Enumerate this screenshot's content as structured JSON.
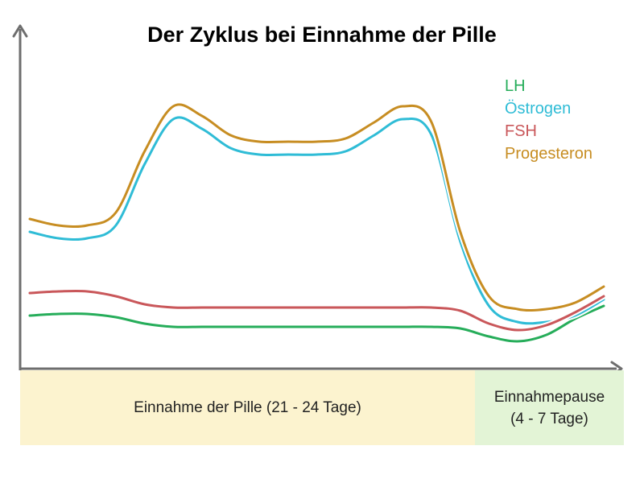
{
  "chart_data": {
    "type": "line",
    "title": "Der Zyklus bei Einnahme der Pille",
    "xlabel": "",
    "ylabel": "",
    "x": [
      0,
      1,
      2,
      3,
      4,
      5,
      6,
      7,
      8,
      9,
      10,
      11,
      12,
      13,
      14,
      15,
      16,
      17,
      18,
      19,
      20
    ],
    "ylim": [
      0,
      100
    ],
    "grid": false,
    "legend_position": "top-right",
    "series": [
      {
        "name": "LH",
        "color": "#26ad5a",
        "values": [
          17,
          17.5,
          17.5,
          16.5,
          14.5,
          13.5,
          13.5,
          13.5,
          13.5,
          13.5,
          13.5,
          13.5,
          13.5,
          13.5,
          13.5,
          13,
          10.5,
          9,
          11,
          16,
          20
        ]
      },
      {
        "name": "Östrogen",
        "color": "#2fbcd6",
        "values": [
          43,
          41,
          41,
          45,
          64,
          78,
          75,
          69,
          67,
          67,
          67,
          68,
          73,
          78,
          73,
          40,
          20,
          15,
          15,
          17,
          22
        ]
      },
      {
        "name": "FSH",
        "color": "#c9575a",
        "values": [
          24,
          24.5,
          24.5,
          23,
          20.5,
          19.5,
          19.5,
          19.5,
          19.5,
          19.5,
          19.5,
          19.5,
          19.5,
          19.5,
          19.5,
          18.5,
          14.5,
          12.5,
          14,
          18,
          23
        ]
      },
      {
        "name": "Progesteron",
        "color": "#c78d22",
        "values": [
          47,
          45,
          45,
          49,
          68,
          82,
          79,
          73,
          71,
          71,
          71,
          72,
          77,
          82,
          77,
          43,
          23,
          19,
          19,
          21,
          26
        ]
      }
    ],
    "phases": [
      {
        "label": "Einnahme der Pille (21 - 24 Tage)",
        "color": "#fcf3cf"
      },
      {
        "label_line1": "Einnahmepause",
        "label_line2": "(4 - 7 Tage)",
        "color": "#e3f4d6"
      }
    ],
    "axis_color": "#6e6e6e"
  }
}
